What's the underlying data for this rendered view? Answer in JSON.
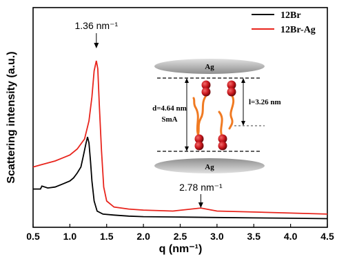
{
  "chart_data": {
    "type": "line",
    "xlabel": "q (nm⁻¹)",
    "ylabel": "Scattering intensity (a.u.)",
    "xlim": [
      0.5,
      4.5
    ],
    "ylim": [
      0,
      1
    ],
    "x_ticks": [
      "0.5",
      "1.0",
      "1.5",
      "2.0",
      "2.5",
      "3.0",
      "3.5",
      "4.0",
      "4.5"
    ],
    "grid": false,
    "legend_position": "top-right",
    "series": [
      {
        "name": "12Br",
        "color": "#000000",
        "points": [
          [
            0.5,
            0.16
          ],
          [
            0.6,
            0.16
          ],
          [
            0.62,
            0.175
          ],
          [
            0.7,
            0.165
          ],
          [
            0.8,
            0.17
          ],
          [
            0.9,
            0.185
          ],
          [
            1.0,
            0.2
          ],
          [
            1.05,
            0.215
          ],
          [
            1.1,
            0.24
          ],
          [
            1.15,
            0.27
          ],
          [
            1.18,
            0.32
          ],
          [
            1.22,
            0.39
          ],
          [
            1.24,
            0.42
          ],
          [
            1.26,
            0.39
          ],
          [
            1.28,
            0.3
          ],
          [
            1.3,
            0.2
          ],
          [
            1.33,
            0.1
          ],
          [
            1.37,
            0.05
          ],
          [
            1.45,
            0.035
          ],
          [
            1.6,
            0.03
          ],
          [
            1.8,
            0.025
          ],
          [
            2.0,
            0.022
          ],
          [
            2.5,
            0.02
          ],
          [
            3.0,
            0.018
          ],
          [
            3.5,
            0.016
          ],
          [
            4.0,
            0.014
          ],
          [
            4.5,
            0.012
          ]
        ]
      },
      {
        "name": "12Br-Ag",
        "color": "#e8241c",
        "points": [
          [
            0.5,
            0.27
          ],
          [
            0.6,
            0.28
          ],
          [
            0.7,
            0.29
          ],
          [
            0.8,
            0.3
          ],
          [
            0.9,
            0.315
          ],
          [
            1.0,
            0.33
          ],
          [
            1.1,
            0.36
          ],
          [
            1.2,
            0.41
          ],
          [
            1.26,
            0.5
          ],
          [
            1.3,
            0.62
          ],
          [
            1.33,
            0.75
          ],
          [
            1.36,
            0.8
          ],
          [
            1.38,
            0.76
          ],
          [
            1.4,
            0.58
          ],
          [
            1.43,
            0.35
          ],
          [
            1.46,
            0.17
          ],
          [
            1.5,
            0.1
          ],
          [
            1.6,
            0.07
          ],
          [
            1.8,
            0.06
          ],
          [
            2.0,
            0.055
          ],
          [
            2.4,
            0.05
          ],
          [
            2.78,
            0.065
          ],
          [
            3.0,
            0.05
          ],
          [
            3.5,
            0.045
          ],
          [
            4.0,
            0.04
          ],
          [
            4.5,
            0.035
          ]
        ]
      }
    ],
    "annotations": [
      {
        "text": "1.36 nm⁻¹",
        "x": 1.36
      },
      {
        "text": "2.78 nm⁻¹",
        "x": 2.78
      }
    ],
    "inset": {
      "top_plate_label": "Ag",
      "bottom_plate_label": "Ag",
      "d_label": "d=4.64 nm",
      "phase_label": "SmA",
      "l_label": "l=3.26 nm"
    }
  }
}
